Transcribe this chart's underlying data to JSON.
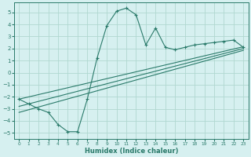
{
  "xlabel": "Humidex (Indice chaleur)",
  "bg_color": "#d6f0f0",
  "grid_color": "#b0d8d0",
  "line_color": "#2a7a6a",
  "xlim": [
    -0.5,
    23.5
  ],
  "ylim": [
    -5.5,
    5.8
  ],
  "xticks": [
    0,
    1,
    2,
    3,
    4,
    5,
    6,
    7,
    8,
    9,
    10,
    11,
    12,
    13,
    14,
    15,
    16,
    17,
    18,
    19,
    20,
    21,
    22,
    23
  ],
  "yticks": [
    -5,
    -4,
    -3,
    -2,
    -1,
    0,
    1,
    2,
    3,
    4,
    5
  ],
  "curve_x": [
    0,
    1,
    2,
    3,
    4,
    5,
    6,
    7,
    8,
    9,
    10,
    11,
    12,
    13,
    14,
    15,
    16,
    17,
    18,
    19,
    20,
    21,
    22,
    23
  ],
  "curve_y": [
    -2.2,
    -2.6,
    -3.0,
    -3.3,
    -4.3,
    -4.9,
    -4.9,
    -2.2,
    1.2,
    3.9,
    5.1,
    5.35,
    4.8,
    2.3,
    3.7,
    2.1,
    1.9,
    2.1,
    2.3,
    2.4,
    2.5,
    2.6,
    2.7,
    2.1
  ],
  "line1_x": [
    0,
    23
  ],
  "line1_y": [
    -2.8,
    2.0
  ],
  "line2_x": [
    0,
    23
  ],
  "line2_y": [
    -2.2,
    2.15
  ],
  "line3_x": [
    0,
    23
  ],
  "line3_y": [
    -3.3,
    1.85
  ]
}
